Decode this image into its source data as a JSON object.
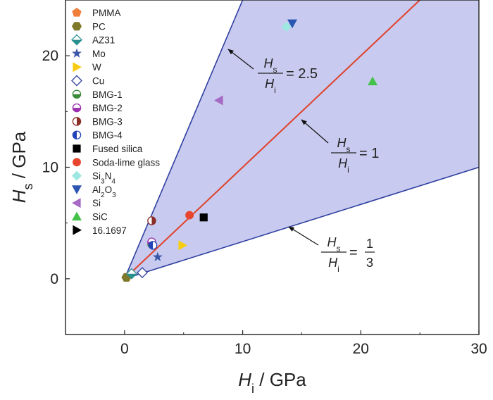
{
  "chart_data": {
    "type": "scatter",
    "xlabel": {
      "main": "H",
      "sub": "i",
      "rest": " / GPa"
    },
    "ylabel": {
      "main": "H",
      "sub": "s",
      "rest": " / GPa"
    },
    "xlim": [
      -5,
      30
    ],
    "ylim": [
      -5,
      25
    ],
    "xticks": [
      0,
      10,
      20,
      30
    ],
    "yticks": [
      0,
      10,
      20
    ],
    "grid": false,
    "legend_position": "top-left",
    "colors": {
      "shade": "#c5c8ee",
      "boundary_line": "#2f3fa0",
      "ratio1_line": "#e0402a"
    },
    "reference_lines": [
      {
        "name": "upper",
        "slope": 2.5,
        "num": "H",
        "num_sub": "s",
        "den": "H",
        "den_sub": "i",
        "eq": "= 2.5"
      },
      {
        "name": "middle",
        "slope": 1,
        "num": "H",
        "num_sub": "s",
        "den": "H",
        "den_sub": "i",
        "eq": "= 1"
      },
      {
        "name": "lower",
        "slope": 0.3333,
        "num": "H",
        "num_sub": "s",
        "den": "H",
        "den_sub": "i",
        "eq": "=",
        "frac_num": "1",
        "frac_den": "3"
      }
    ],
    "series": [
      {
        "name": "PMMA",
        "name_html": [
          "PMMA"
        ],
        "marker": "pentagon",
        "color": "#f07f3c",
        "points": [
          [
            0.2,
            0.15
          ]
        ]
      },
      {
        "name": "PC",
        "name_html": [
          "PC"
        ],
        "marker": "hexagon",
        "color": "#7e7a2c",
        "points": [
          [
            0.15,
            0.12
          ]
        ]
      },
      {
        "name": "AZ31",
        "name_html": [
          "AZ31"
        ],
        "marker": "diamond-half",
        "color": "#2a8f8f",
        "points": [
          [
            0.6,
            0.45
          ]
        ]
      },
      {
        "name": "Mo",
        "name_html": [
          "Mo"
        ],
        "marker": "star",
        "color": "#3a56a8",
        "points": [
          [
            2.8,
            1.95
          ]
        ]
      },
      {
        "name": "W",
        "name_html": [
          "W"
        ],
        "marker": "triangle-right",
        "color": "#f7cc12",
        "points": [
          [
            4.9,
            3.0
          ]
        ]
      },
      {
        "name": "Cu",
        "name_html": [
          "Cu"
        ],
        "marker": "diamond-open",
        "color": "#3a4aa0",
        "points": [
          [
            1.5,
            0.55
          ]
        ]
      },
      {
        "name": "BMG-1",
        "name_html": [
          "BMG-1"
        ],
        "marker": "circle-bottom",
        "color": "#3a8a3a",
        "points": [
          [
            2.3,
            3.1
          ]
        ]
      },
      {
        "name": "BMG-2",
        "name_html": [
          "BMG-2"
        ],
        "marker": "circle-bottom",
        "color": "#9a2fae",
        "points": [
          [
            2.3,
            3.3
          ]
        ]
      },
      {
        "name": "BMG-3",
        "name_html": [
          "BMG-3"
        ],
        "marker": "circle-right",
        "color": "#8a2e26",
        "points": [
          [
            2.3,
            5.2
          ]
        ]
      },
      {
        "name": "BMG-4",
        "name_html": [
          "BMG-4"
        ],
        "marker": "circle-left",
        "color": "#2244b8",
        "points": [
          [
            2.4,
            3.0
          ]
        ]
      },
      {
        "name": "Fused silica",
        "name_html": [
          "Fused silica"
        ],
        "marker": "square",
        "color": "#000000",
        "points": [
          [
            6.7,
            5.5
          ]
        ]
      },
      {
        "name": "Soda-lime glass",
        "name_html": [
          "Soda-lime glass"
        ],
        "marker": "circle",
        "color": "#e8452e",
        "points": [
          [
            5.5,
            5.7
          ]
        ]
      },
      {
        "name": "Si3N4",
        "name_html": [
          "Si",
          "3",
          "N",
          "4"
        ],
        "marker": "diamond",
        "color": "#9ee8e2",
        "points": [
          [
            13.7,
            22.6
          ]
        ]
      },
      {
        "name": "Al2O3",
        "name_html": [
          "Al",
          "2",
          "O",
          "3"
        ],
        "marker": "triangle-down",
        "color": "#2a55b0",
        "points": [
          [
            14.2,
            22.9
          ]
        ]
      },
      {
        "name": "Si",
        "name_html": [
          "Si"
        ],
        "marker": "triangle-left",
        "color": "#a56ac4",
        "points": [
          [
            8.0,
            16.0
          ]
        ]
      },
      {
        "name": "SiC",
        "name_html": [
          "SiC"
        ],
        "marker": "triangle-up",
        "color": "#43c24a",
        "points": [
          [
            21.0,
            17.7
          ]
        ]
      },
      {
        "name": "16.1697",
        "name_html": [
          "16.1697"
        ],
        "marker": "triangle-right",
        "color": "#000000",
        "points": []
      }
    ]
  }
}
